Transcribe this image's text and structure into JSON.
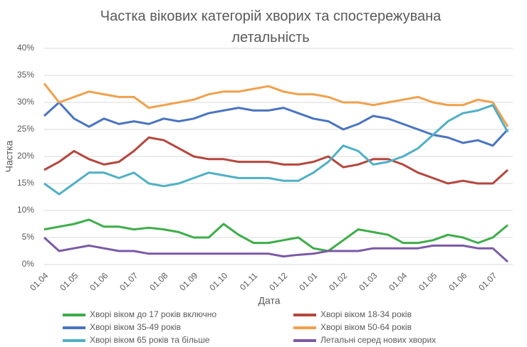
{
  "chart_data": {
    "type": "line",
    "title": "Частка вікових категорій хворих та спостережувана летальність",
    "x_label": "Дата",
    "y_label": "Частка",
    "categories": [
      "01.04",
      null,
      "01.05",
      null,
      "01.06",
      null,
      "01.07",
      null,
      "01.08",
      null,
      "01.09",
      null,
      "01.10",
      null,
      "01.11",
      null,
      "01.12",
      null,
      "01.01",
      null,
      "01.02",
      null,
      "01.03",
      null,
      "01.04",
      null,
      "01.05",
      null,
      "01.06",
      null,
      "01.07",
      null
    ],
    "ylim": [
      0,
      40
    ],
    "yticks": [
      {
        "value": 0,
        "label": "0%"
      },
      {
        "value": 5,
        "label": "5%"
      },
      {
        "value": 10,
        "label": "10%"
      },
      {
        "value": 15,
        "label": "15%"
      },
      {
        "value": 20,
        "label": "20%"
      },
      {
        "value": 25,
        "label": "25%"
      },
      {
        "value": 30,
        "label": "30%"
      },
      {
        "value": 35,
        "label": "35%"
      },
      {
        "value": 40,
        "label": "40%"
      }
    ],
    "grid": true,
    "legend": "bottom",
    "series": [
      {
        "name": "Хворі віком до 17 років включно",
        "color": "#3cad48",
        "values": [
          6.5,
          7,
          7.5,
          8.3,
          7,
          7,
          6.5,
          6.8,
          6.5,
          6,
          5,
          5,
          7.5,
          5.5,
          4,
          4,
          4.5,
          5,
          3,
          2.5,
          4.5,
          6.5,
          6,
          5.5,
          4,
          4,
          4.5,
          5.5,
          5,
          4,
          5,
          7.3
        ]
      },
      {
        "name": "Хворі віком 18-34 років",
        "color": "#b5463c",
        "values": [
          17.5,
          19,
          21,
          19.5,
          18.5,
          19,
          21,
          23.5,
          23,
          21.5,
          20,
          19.5,
          19.5,
          19,
          19,
          19,
          18.5,
          18.5,
          19,
          20,
          18,
          18.5,
          19.5,
          19.5,
          18.5,
          17,
          16,
          15,
          15.5,
          15,
          15,
          17.5
        ]
      },
      {
        "name": "Хворі віком 35-49 років",
        "color": "#4a74c0",
        "values": [
          27.5,
          30,
          27,
          25.5,
          27,
          26,
          26.5,
          26,
          27,
          26.5,
          27,
          28,
          28.5,
          29,
          28.5,
          28.5,
          29,
          28,
          27,
          26.5,
          25,
          26,
          27.5,
          27,
          26,
          25,
          24,
          23.5,
          22.5,
          23,
          22,
          25
        ]
      },
      {
        "name": "Хворі віком 50-64 років",
        "color": "#f1a04c",
        "values": [
          33.5,
          30,
          31,
          32,
          31.5,
          31,
          31,
          29,
          29.5,
          30,
          30.5,
          31.5,
          32,
          32,
          32.5,
          33,
          32,
          31.5,
          31.5,
          31,
          30,
          30,
          29.5,
          30,
          30.5,
          31,
          30,
          29.5,
          29.5,
          30.5,
          30,
          25.5
        ]
      },
      {
        "name": "Хворі віком 65 років та більше",
        "color": "#4fb0c6",
        "values": [
          15,
          13,
          15,
          17,
          17,
          16,
          17,
          15,
          14.5,
          15,
          16,
          17,
          16.5,
          16,
          16,
          16,
          15.5,
          15.5,
          17,
          19,
          22,
          21,
          18.5,
          19,
          20,
          21.5,
          24,
          26.5,
          28,
          28.5,
          29.5,
          24.5
        ]
      },
      {
        "name": "Летальні серед нових хворих",
        "color": "#7b59a5",
        "values": [
          5,
          2.5,
          3,
          3.5,
          3,
          2.5,
          2.5,
          2,
          2,
          2,
          2,
          2,
          2,
          2,
          2,
          2,
          1.5,
          1.8,
          2,
          2.5,
          2.5,
          2.5,
          3,
          3,
          3,
          3,
          3.5,
          3.5,
          3.5,
          3,
          3,
          0.5
        ]
      }
    ]
  }
}
